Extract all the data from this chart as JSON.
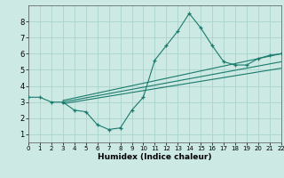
{
  "xlabel": "Humidex (Indice chaleur)",
  "xlim": [
    0,
    22
  ],
  "ylim": [
    0.5,
    9.0
  ],
  "yticks": [
    1,
    2,
    3,
    4,
    5,
    6,
    7,
    8
  ],
  "xticks": [
    0,
    1,
    2,
    3,
    4,
    5,
    6,
    7,
    8,
    9,
    10,
    11,
    12,
    13,
    14,
    15,
    16,
    17,
    18,
    19,
    20,
    21,
    22
  ],
  "bg_color": "#cce9e3",
  "grid_color": "#aad4cc",
  "line_color": "#1a7a6e",
  "line1_x": [
    0,
    1,
    2,
    3,
    4,
    5,
    6,
    7,
    8,
    9,
    10,
    11,
    12,
    13,
    14,
    15,
    16,
    17,
    18,
    19,
    20,
    21,
    22
  ],
  "line1_y": [
    3.3,
    3.3,
    3.0,
    3.0,
    2.5,
    2.4,
    1.6,
    1.3,
    1.4,
    2.5,
    3.3,
    5.6,
    6.5,
    7.4,
    8.5,
    7.6,
    6.5,
    5.5,
    5.3,
    5.3,
    5.7,
    5.9,
    6.0
  ],
  "line2_x": [
    3,
    22
  ],
  "line2_y": [
    3.1,
    6.0
  ],
  "line3_x": [
    3,
    22
  ],
  "line3_y": [
    3.0,
    5.5
  ],
  "line4_x": [
    3,
    22
  ],
  "line4_y": [
    2.9,
    5.1
  ]
}
